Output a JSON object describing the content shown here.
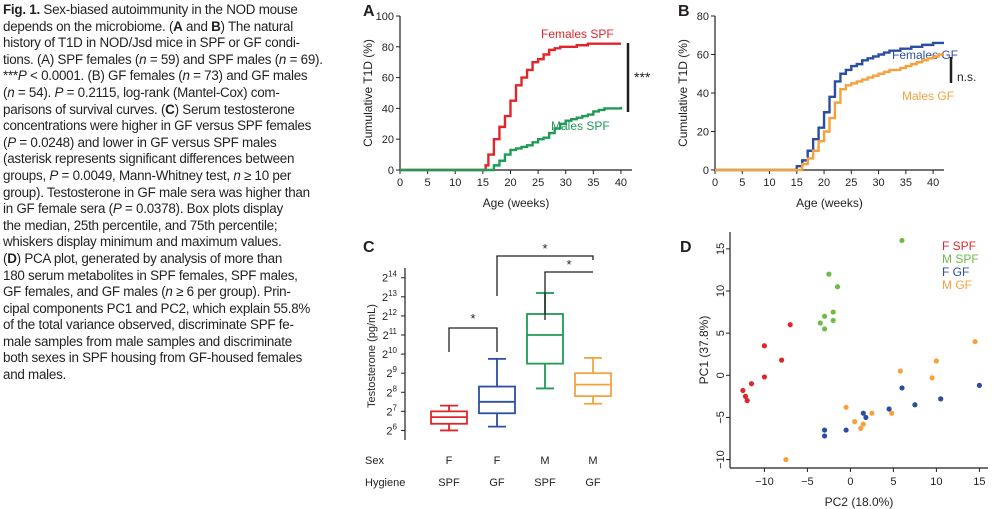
{
  "caption": {
    "fig_label": "Fig. 1.",
    "lines": [
      " Sex-biased autoimmunity in the NOD mouse",
      "depends on the microbiome. (A and B) The natural",
      "history of T1D in NOD/Jsd mice in SPF or GF condi-",
      "tions. (A) SPF females (n = 59) and SPF males (n = 69).",
      "***P < 0.0001. (B) GF females (n = 73) and GF males",
      "(n = 54). P = 0.2115, log-rank (Mantel-Cox) com-",
      "parisons of survival curves. (C) Serum testosterone",
      "concentrations were higher in GF versus SPF females",
      "(P = 0.0248) and lower in GF versus SPF males",
      "(asterisk represents significant differences between",
      "groups, P = 0.0049, Mann-Whitney test, n ≥ 10 per",
      "group). Testosterone in GF male sera was higher than",
      "in GF female sera (P = 0.0378). Box plots display",
      "the median, 25th percentile, and 75th percentile;",
      "whiskers display minimum and maximum values.",
      "(D) PCA plot, generated by analysis of more than",
      "180 serum metabolites in SPF females, SPF males,",
      "GF females, and GF males (n ≥ 6 per group). Prin-",
      "cipal components PC1 and PC2, which explain 55.8%",
      "of the total variance observed, discriminate SPF fe-",
      "male samples from male samples and discriminate",
      "both sexes in SPF housing from GF-housed females",
      "and males."
    ]
  },
  "colors": {
    "red": "#e0262b",
    "green": "#1f9a57",
    "blue": "#2b4ea3",
    "orange": "#f5a23c",
    "pca_red": "#e0262b",
    "pca_green": "#6cbd45",
    "pca_blue": "#2b4ea3",
    "pca_orange": "#f5a23c"
  },
  "chart_data": [
    {
      "panel": "A",
      "type": "line",
      "step": true,
      "xlabel": "Age (weeks)",
      "ylabel": "Cumulative T1D (%)",
      "xlim": [
        0,
        42
      ],
      "ylim": [
        0,
        100
      ],
      "xticks": [
        0,
        5,
        10,
        15,
        20,
        25,
        30,
        35,
        40
      ],
      "yticks": [
        0,
        20,
        40,
        60,
        80,
        100
      ],
      "significance": "***",
      "series": [
        {
          "name": "Females SPF",
          "color": "red",
          "x": [
            0,
            14.5,
            15.5,
            16,
            17,
            18,
            19,
            20,
            21,
            22,
            23,
            24,
            25,
            26,
            27,
            28,
            29,
            30,
            31,
            32,
            33,
            34,
            35,
            36,
            37,
            38,
            40
          ],
          "y": [
            0,
            0,
            3,
            10,
            20,
            28,
            35,
            45,
            55,
            60,
            65,
            70,
            72,
            75,
            78,
            79,
            80,
            80,
            80,
            81,
            81,
            82,
            82,
            82,
            82,
            82,
            82
          ]
        },
        {
          "name": "Males SPF",
          "color": "green",
          "x": [
            0,
            16,
            17,
            18,
            19,
            20,
            21,
            22,
            23,
            24,
            25,
            26,
            27,
            28,
            29,
            30,
            31,
            32,
            33,
            34,
            35,
            36,
            37,
            38,
            39,
            40
          ],
          "y": [
            0,
            0,
            3,
            6,
            10,
            13,
            14,
            15,
            16,
            18,
            20,
            21,
            24,
            27,
            30,
            32,
            33,
            34,
            35,
            36,
            38,
            39,
            40,
            40,
            40,
            41
          ]
        }
      ]
    },
    {
      "panel": "B",
      "type": "line",
      "step": true,
      "xlabel": "Age (weeks)",
      "ylabel": "Cumulative T1D (%)",
      "xlim": [
        0,
        42
      ],
      "ylim": [
        0,
        80
      ],
      "xticks": [
        0,
        5,
        10,
        15,
        20,
        25,
        30,
        35,
        40
      ],
      "yticks": [
        0,
        20,
        40,
        60,
        80
      ],
      "significance": "n.s.",
      "series": [
        {
          "name": "Females GF",
          "color": "blue",
          "x": [
            0,
            13,
            15,
            16,
            17,
            18,
            19,
            20,
            21,
            22,
            23,
            24,
            25,
            26,
            27,
            28,
            29,
            30,
            31,
            32,
            33,
            34,
            35,
            36,
            37,
            38,
            39,
            40,
            41,
            42
          ],
          "y": [
            0,
            0,
            2,
            5,
            10,
            16,
            22,
            30,
            38,
            46,
            50,
            52,
            54,
            55,
            57,
            58,
            59,
            60,
            61,
            62,
            62,
            63,
            63,
            64,
            64,
            65,
            65,
            66,
            66,
            66
          ]
        },
        {
          "name": "Males GF",
          "color": "orange",
          "x": [
            0,
            15,
            16,
            17,
            18,
            19,
            20,
            21,
            22,
            23,
            24,
            25,
            26,
            27,
            28,
            29,
            30,
            31,
            32,
            33,
            34,
            35,
            36,
            37,
            38,
            39,
            40,
            41,
            42
          ],
          "y": [
            0,
            0,
            3,
            6,
            10,
            15,
            20,
            27,
            35,
            42,
            44,
            45,
            46,
            47,
            48,
            49,
            50,
            51,
            52,
            52,
            53,
            54,
            55,
            56,
            57,
            58,
            59,
            60,
            60
          ]
        }
      ]
    },
    {
      "panel": "C",
      "type": "box",
      "ylabel": "Testosterone (pg/mL)",
      "ytick_base": "2",
      "ylim_log2": [
        5.5,
        14.3
      ],
      "yticks_exp": [
        "6",
        "7",
        "8",
        "9",
        "10",
        "11",
        "12",
        "13",
        "14"
      ],
      "row_labels": [
        "Sex",
        "Hygiene"
      ],
      "groups": [
        {
          "sex": "F",
          "hygiene": "SPF",
          "color": "red",
          "min": 6.0,
          "q1": 6.35,
          "median": 6.7,
          "q3": 7.0,
          "max": 7.3
        },
        {
          "sex": "F",
          "hygiene": "GF",
          "color": "blue",
          "min": 6.2,
          "q1": 6.9,
          "median": 7.5,
          "q3": 8.3,
          "max": 9.75
        },
        {
          "sex": "M",
          "hygiene": "SPF",
          "color": "green",
          "min": 8.2,
          "q1": 9.5,
          "median": 11.0,
          "q3": 12.1,
          "max": 13.2
        },
        {
          "sex": "M",
          "hygiene": "GF",
          "color": "orange",
          "min": 7.4,
          "q1": 7.8,
          "median": 8.4,
          "q3": 9.0,
          "max": 9.8
        }
      ],
      "brackets": [
        {
          "from": 0,
          "to": 1,
          "label": "*"
        },
        {
          "from": 1,
          "to": 3,
          "label": "*"
        },
        {
          "from": 2,
          "to": 3,
          "label": "*"
        }
      ]
    },
    {
      "panel": "D",
      "type": "scatter",
      "xlabel": "PC2 (18.0%)",
      "ylabel": "PC1 (37.8%)",
      "xlim": [
        -14,
        16
      ],
      "ylim": [
        -11,
        17
      ],
      "xticks": [
        -10,
        -5,
        0,
        5,
        10,
        15
      ],
      "yticks": [
        -10,
        -5,
        0,
        5,
        10,
        15
      ],
      "legend_position": "top-right",
      "series": [
        {
          "name": "F SPF",
          "color": "pca_red",
          "points": [
            [
              -7,
              6
            ],
            [
              -10,
              3.5
            ],
            [
              -8,
              1.8
            ],
            [
              -10,
              -0.2
            ],
            [
              -11.5,
              -1
            ],
            [
              -12.5,
              -1.8
            ],
            [
              -12.2,
              -2.5
            ],
            [
              -12,
              -3
            ]
          ]
        },
        {
          "name": "M SPF",
          "color": "pca_green",
          "points": [
            [
              6,
              16
            ],
            [
              -2.5,
              12
            ],
            [
              -1.5,
              10.5
            ],
            [
              -2,
              7.5
            ],
            [
              -3,
              7
            ],
            [
              -2,
              6.5
            ],
            [
              -3.5,
              6.2
            ],
            [
              -3,
              5.5
            ]
          ]
        },
        {
          "name": "F GF",
          "color": "pca_blue",
          "points": [
            [
              -3,
              -6.5
            ],
            [
              -3,
              -7.2
            ],
            [
              -0.5,
              -6.5
            ],
            [
              1.5,
              -4.5
            ],
            [
              1.8,
              -5
            ],
            [
              4.5,
              -4
            ],
            [
              6,
              -1.5
            ],
            [
              7.5,
              -3.5
            ],
            [
              10.5,
              -2.8
            ],
            [
              15,
              -1.2
            ]
          ]
        },
        {
          "name": "M GF",
          "color": "pca_orange",
          "points": [
            [
              14.5,
              4
            ],
            [
              10,
              1.7
            ],
            [
              5.8,
              0.5
            ],
            [
              9.5,
              -0.3
            ],
            [
              -0.5,
              -3.8
            ],
            [
              0.5,
              -5.5
            ],
            [
              1.2,
              -6.3
            ],
            [
              1.5,
              -5.8
            ],
            [
              2.5,
              -4.5
            ],
            [
              4.8,
              -4.5
            ],
            [
              -7.5,
              -10
            ]
          ]
        }
      ]
    }
  ],
  "panels": {
    "a": "A",
    "b": "B",
    "c": "C",
    "d": "D"
  }
}
